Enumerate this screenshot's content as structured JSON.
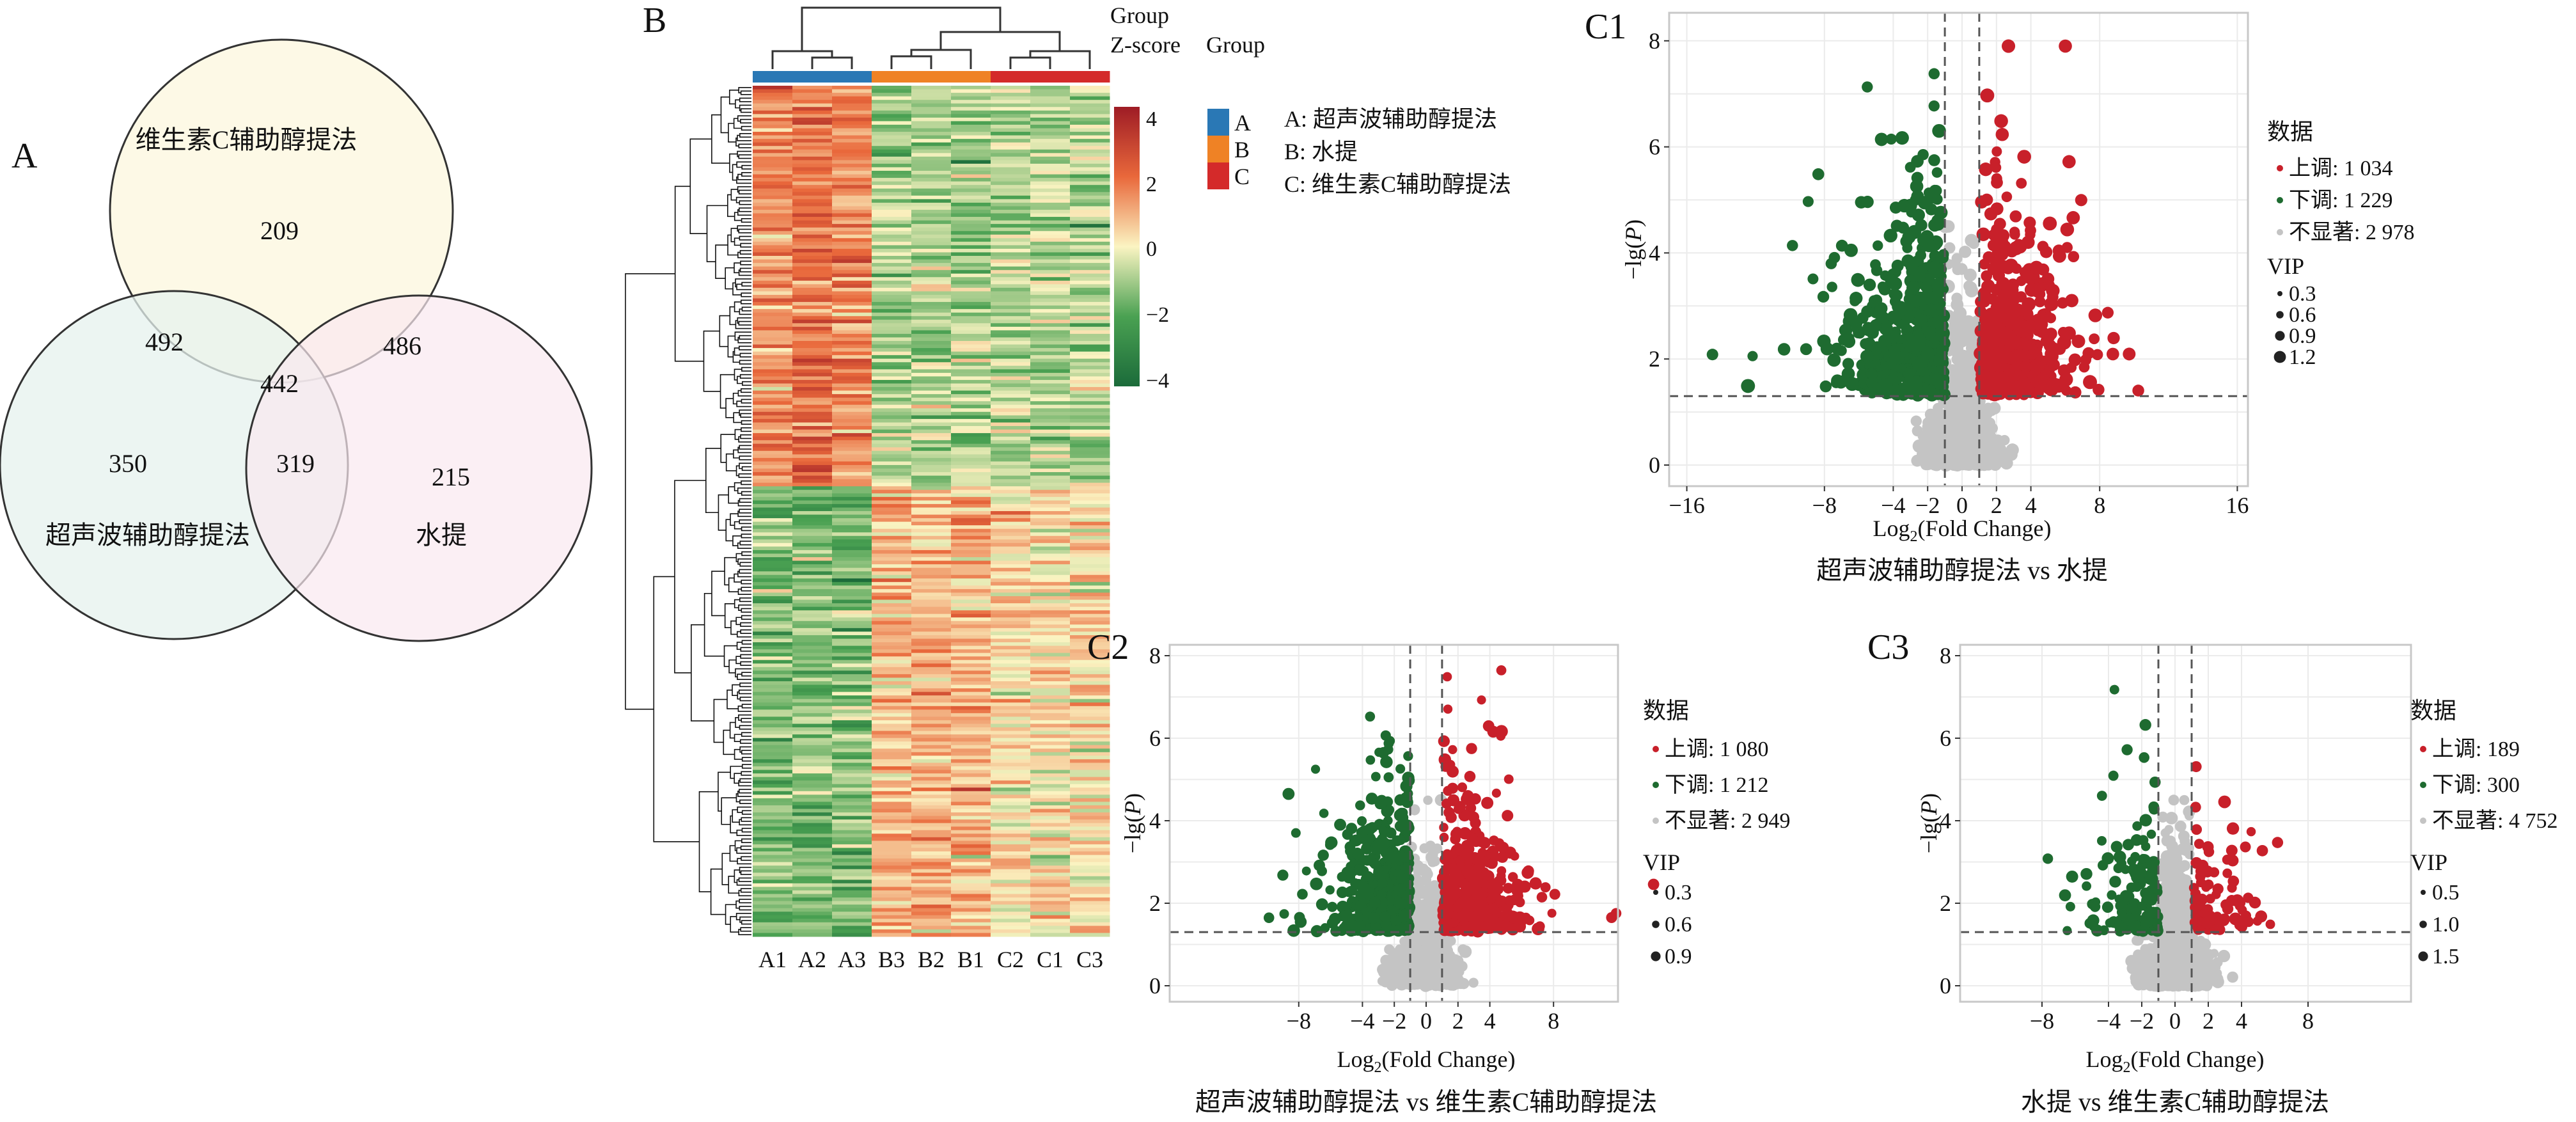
{
  "panel_labels": {
    "a": "A",
    "b": "B",
    "c1": "C1",
    "c2": "C2",
    "c3": "C3"
  },
  "venn": {
    "sets": [
      {
        "label": "维生素C辅助醇提法",
        "color": "#fdf8e2"
      },
      {
        "label": "超声波辅助醇提法",
        "color": "#e6f2ee"
      },
      {
        "label": "水提",
        "color": "#f9e8ef"
      }
    ],
    "regions": {
      "vc_only": "209",
      "vc_us": "492",
      "vc_water": "486",
      "all": "442",
      "us_only": "350",
      "us_water": "319",
      "water_only": "215"
    }
  },
  "heatmap": {
    "columns": [
      "A1",
      "A2",
      "A3",
      "B3",
      "B2",
      "B1",
      "C2",
      "C1",
      "C3"
    ],
    "column_groups": [
      "A",
      "A",
      "A",
      "B",
      "B",
      "B",
      "C",
      "C",
      "C"
    ],
    "colorbar": {
      "title_line1": "Group",
      "title_line2": "Z-score",
      "ticks": [
        "4",
        "2",
        "0",
        "−2",
        "−4"
      ],
      "range": [
        -4,
        4
      ],
      "colors": [
        "#1b6b3a",
        "#4aa152",
        "#fbf4c2",
        "#e9683b",
        "#9e1c25"
      ]
    },
    "group_legend": {
      "title": "Group",
      "items": [
        {
          "key": "A",
          "color": "#2a78b5",
          "desc": "A: 超声波辅助醇提法"
        },
        {
          "key": "B",
          "color": "#ef8225",
          "desc": "B: 水提"
        },
        {
          "key": "C",
          "color": "#d42a2a",
          "desc": "C: 维生素C辅助醇提法"
        }
      ]
    }
  },
  "chart_data": [
    {
      "id": "c1",
      "type": "scatter",
      "title": "超声波辅助醇提法 vs 水提",
      "xlabel": {
        "pre": "Log",
        "sub": "2",
        "post": "(Fold Change)"
      },
      "ylabel": {
        "pre": "−lg(",
        "it": "P",
        "post": ")"
      },
      "xticks": [
        "−16",
        "−8",
        "−4",
        "−2",
        "0",
        "2",
        "4",
        "8",
        "16"
      ],
      "xtick_values": [
        -16,
        -8,
        -4,
        -2,
        0,
        2,
        4,
        8,
        16
      ],
      "yticks": [
        "0",
        "2",
        "4",
        "6",
        "8"
      ],
      "ytick_values": [
        0,
        2,
        4,
        6,
        8
      ],
      "thresholds": {
        "log2fc": [
          -1,
          1
        ],
        "neg_log10_p": 1.3
      },
      "colors": {
        "up": "#c8202a",
        "down": "#1e6b30",
        "ns": "#c4c4c4"
      },
      "legend": {
        "title": "数据",
        "items": [
          {
            "key": "up",
            "label": "上调: 1 034",
            "count": 1034
          },
          {
            "key": "down",
            "label": "下调: 1 229",
            "count": 1229
          },
          {
            "key": "ns",
            "label": "不显著: 2 978",
            "count": 2978
          }
        ],
        "size_title": "VIP",
        "sizes": [
          "0.3",
          "0.6",
          "0.9",
          "1.2"
        ]
      }
    },
    {
      "id": "c2",
      "type": "scatter",
      "title": "超声波辅助醇提法 vs 维生素C辅助醇提法",
      "xlabel": {
        "pre": "Log",
        "sub": "2",
        "post": "(Fold Change)"
      },
      "ylabel": {
        "pre": "−lg(",
        "it": "P",
        "post": ")"
      },
      "xticks": [
        "−8",
        "−4",
        "−2",
        "0",
        "2",
        "4",
        "8"
      ],
      "xtick_values": [
        -8,
        -4,
        -2,
        0,
        2,
        4,
        8
      ],
      "yticks": [
        "0",
        "2",
        "4",
        "6",
        "8"
      ],
      "ytick_values": [
        0,
        2,
        4,
        6,
        8
      ],
      "thresholds": {
        "log2fc": [
          -1,
          1
        ],
        "neg_log10_p": 1.3
      },
      "colors": {
        "up": "#c8202a",
        "down": "#1e6b30",
        "ns": "#c4c4c4"
      },
      "legend": {
        "title": "数据",
        "items": [
          {
            "key": "up",
            "label": "上调: 1 080",
            "count": 1080
          },
          {
            "key": "down",
            "label": "下调: 1 212",
            "count": 1212
          },
          {
            "key": "ns",
            "label": "不显著: 2 949",
            "count": 2949
          }
        ],
        "size_title": "VIP",
        "sizes": [
          "0.3",
          "0.6",
          "0.9"
        ]
      }
    },
    {
      "id": "c3",
      "type": "scatter",
      "title": "水提 vs 维生素C辅助醇提法",
      "xlabel": {
        "pre": "Log",
        "sub": "2",
        "post": "(Fold Change)"
      },
      "ylabel": {
        "pre": "−lg(",
        "it": "P",
        "post": ")"
      },
      "xticks": [
        "−8",
        "−4",
        "−2",
        "0",
        "2",
        "4",
        "8"
      ],
      "xtick_values": [
        -8,
        -4,
        -2,
        0,
        2,
        4,
        8
      ],
      "yticks": [
        "0",
        "2",
        "4",
        "6",
        "8"
      ],
      "ytick_values": [
        0,
        2,
        4,
        6,
        8
      ],
      "thresholds": {
        "log2fc": [
          -1,
          1
        ],
        "neg_log10_p": 1.3
      },
      "colors": {
        "up": "#c8202a",
        "down": "#1e6b30",
        "ns": "#c4c4c4"
      },
      "legend": {
        "title": "数据",
        "items": [
          {
            "key": "up",
            "label": "上调: 189",
            "count": 189
          },
          {
            "key": "down",
            "label": "下调: 300",
            "count": 300
          },
          {
            "key": "ns",
            "label": "不显著: 4 752",
            "count": 4752
          }
        ],
        "size_title": "VIP",
        "sizes": [
          "0.5",
          "1.0",
          "1.5"
        ]
      }
    }
  ]
}
